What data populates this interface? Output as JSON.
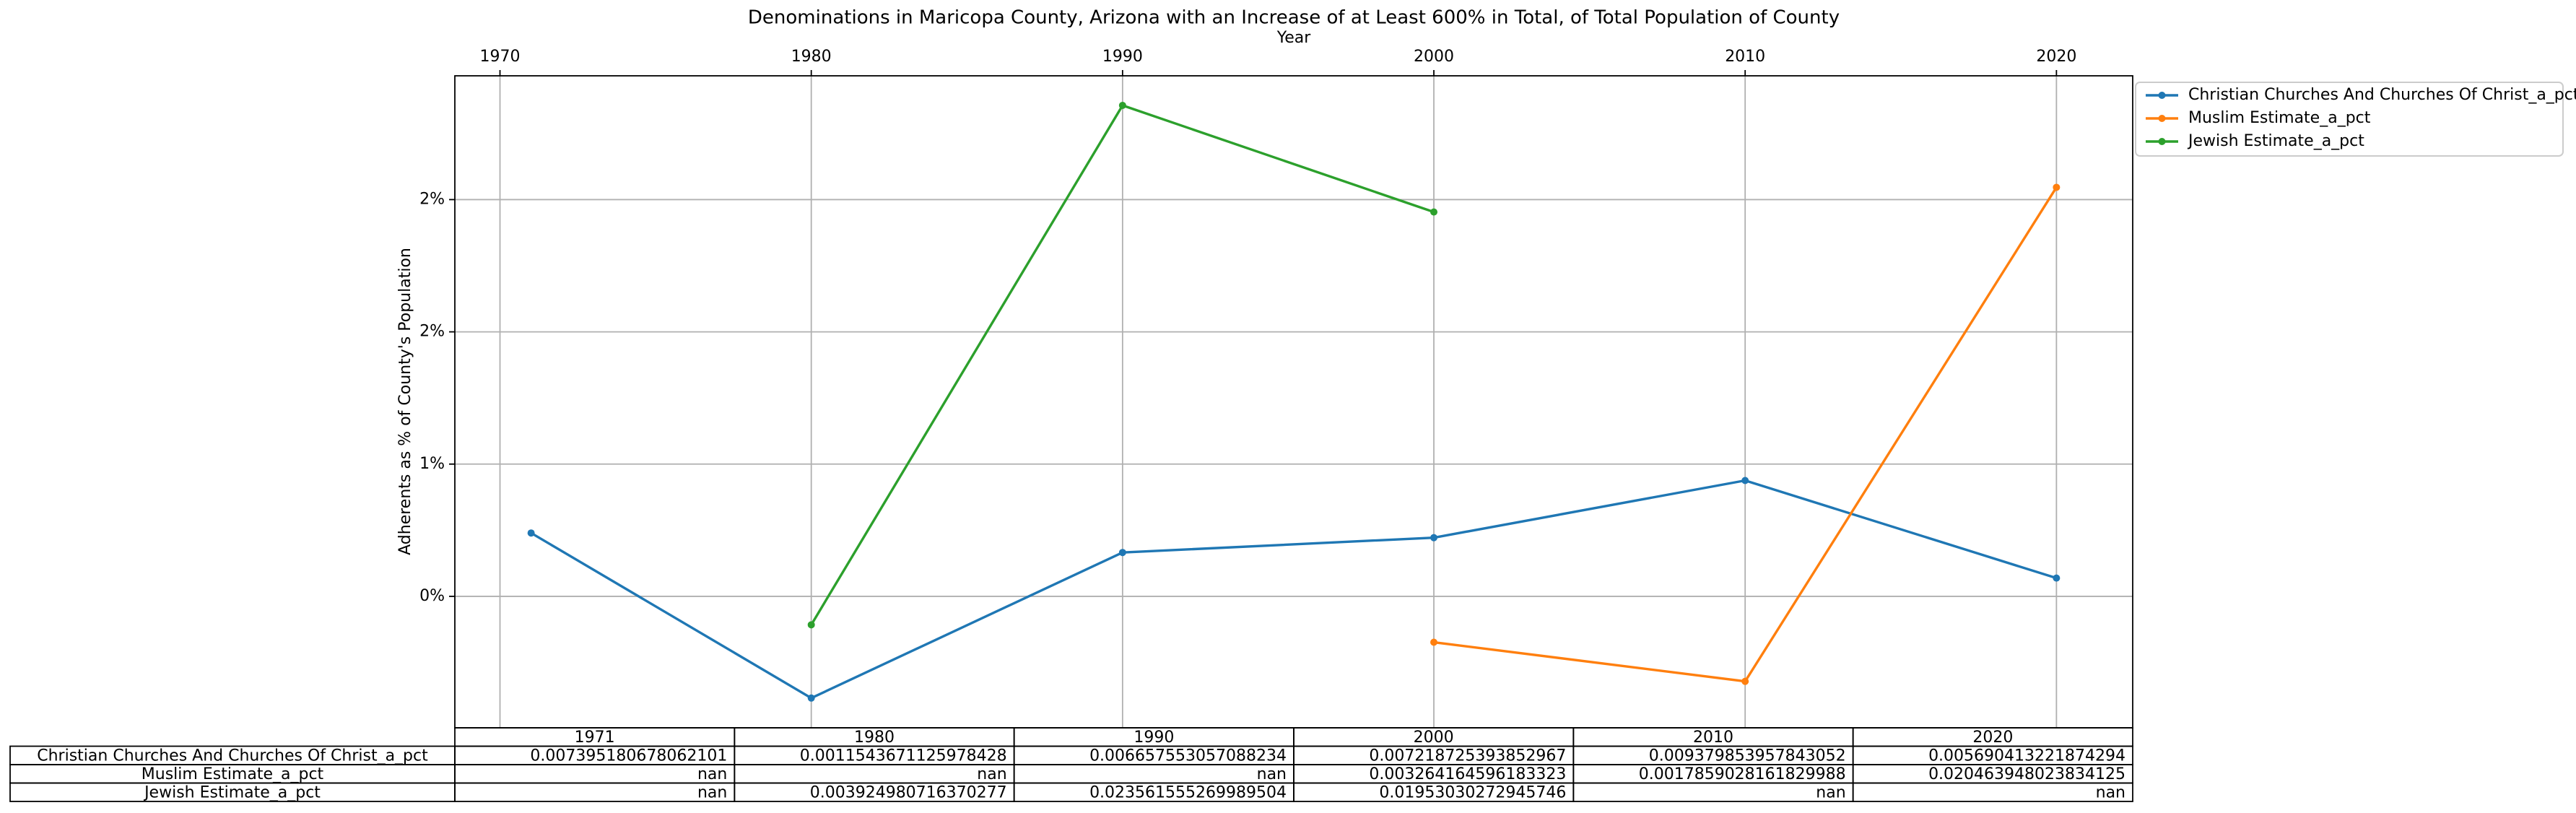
{
  "chart_data": {
    "type": "line",
    "title": "Denominations in Maricopa County, Arizona with an Increase of at Least 600% in Total, of Total Population of County",
    "xlabel": "Year",
    "ylabel": "Adherents as % of County's Population",
    "x": [
      1971,
      1980,
      1990,
      2000,
      2010,
      2020
    ],
    "series": [
      {
        "name": "Christian Churches And Churches Of Christ_a_pct",
        "color": "#1f77b4",
        "values": [
          0.007395180678062101,
          0.0011543671125978428,
          0.006657553057088234,
          0.007218725393852967,
          0.009379853957843052,
          0.005690413221874294
        ]
      },
      {
        "name": "Muslim Estimate_a_pct",
        "color": "#ff7f0e",
        "values": [
          null,
          null,
          null,
          0.003264164596183323,
          0.0017859028161829988,
          0.020463948023834125
        ]
      },
      {
        "name": "Jewish Estimate_a_pct",
        "color": "#2ca02c",
        "values": [
          null,
          0.003924980716370277,
          0.023561555269989504,
          0.01953030272945746,
          null,
          null
        ]
      }
    ],
    "xlim": [
      1968.55,
      2022.45
    ],
    "xticks": [
      1970,
      1980,
      1990,
      2000,
      2010,
      2020
    ],
    "ylim": [
      3e-05,
      0.02468
    ],
    "yticks": [
      {
        "value": 0.005,
        "label": "0%"
      },
      {
        "value": 0.01,
        "label": "1%"
      },
      {
        "value": 0.015,
        "label": "2%"
      },
      {
        "value": 0.02,
        "label": "2%"
      }
    ],
    "grid": true,
    "legend": "outside-upper-right",
    "table": {
      "cells": [
        [
          "0.007395180678062101",
          "0.0011543671125978428",
          "0.006657553057088234",
          "0.007218725393852967",
          "0.009379853957843052",
          "0.005690413221874294"
        ],
        [
          "nan",
          "nan",
          "nan",
          "0.003264164596183323",
          "0.0017859028161829988",
          "0.020463948023834125"
        ],
        [
          "nan",
          "0.003924980716370277",
          "0.023561555269989504",
          "0.01953030272945746",
          "nan",
          "nan"
        ]
      ]
    }
  }
}
